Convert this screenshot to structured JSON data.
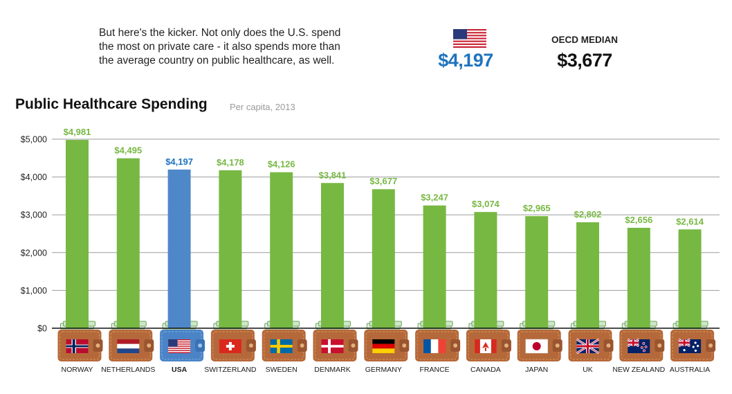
{
  "intro": {
    "line1": "But here's the kicker. Not only does the U.S. spend",
    "line2": "the most on private care - it also spends more than",
    "line3": "the average country on public healthcare, as well."
  },
  "highlight": {
    "usa_value": "$4,197",
    "oecd_label": "OECD MEDIAN",
    "oecd_value": "$3,677"
  },
  "colors": {
    "green": "#77b843",
    "blue": "#4f88c9",
    "usa_text": "#1e73be",
    "wallet": "#b5693a",
    "wallet_blue": "#4a84c6"
  },
  "chart_data": {
    "type": "bar",
    "title": "Public Healthcare Spending",
    "subtitle": "Per capita, 2013",
    "xlabel": "",
    "ylabel": "",
    "ylim": [
      0,
      5000
    ],
    "yticks": [
      0,
      1000,
      2000,
      3000,
      4000,
      5000
    ],
    "ytick_labels": [
      "$0",
      "$1,000",
      "$2,000",
      "$3,000",
      "$4,000",
      "$5,000"
    ],
    "grid": true,
    "highlight_category": "USA",
    "categories": [
      "NORWAY",
      "NETHERLANDS",
      "USA",
      "SWITZERLAND",
      "SWEDEN",
      "DENMARK",
      "GERMANY",
      "FRANCE",
      "CANADA",
      "JAPAN",
      "UK",
      "NEW ZEALAND",
      "AUSTRALIA"
    ],
    "values": [
      4981,
      4495,
      4197,
      4178,
      4126,
      3841,
      3677,
      3247,
      3074,
      2965,
      2802,
      2656,
      2614
    ],
    "value_labels": [
      "$4,981",
      "$4,495",
      "$4,197",
      "$4,178",
      "$4,126",
      "$3,841",
      "$3,677",
      "$3,247",
      "$3,074",
      "$2,965",
      "$2,802",
      "$2,656",
      "$2,614"
    ],
    "flags": [
      "norway-flag",
      "netherlands-flag",
      "usa-flag",
      "switzerland-flag",
      "sweden-flag",
      "denmark-flag",
      "germany-flag",
      "france-flag",
      "canada-flag",
      "japan-flag",
      "uk-flag",
      "new-zealand-flag",
      "australia-flag"
    ]
  }
}
